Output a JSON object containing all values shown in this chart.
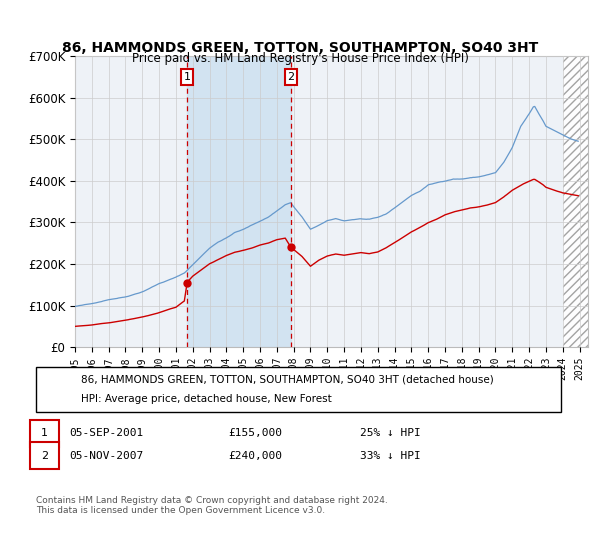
{
  "title": "86, HAMMONDS GREEN, TOTTON, SOUTHAMPTON, SO40 3HT",
  "subtitle": "Price paid vs. HM Land Registry's House Price Index (HPI)",
  "ylim": [
    0,
    700000
  ],
  "yticks": [
    0,
    100000,
    200000,
    300000,
    400000,
    500000,
    600000,
    700000
  ],
  "ytick_labels": [
    "£0",
    "£100K",
    "£200K",
    "£300K",
    "£400K",
    "£500K",
    "£600K",
    "£700K"
  ],
  "xlim_start": 1995.0,
  "xlim_end": 2025.5,
  "sale1_date": 2001.67,
  "sale1_price": 155000,
  "sale2_date": 2007.84,
  "sale2_price": 240000,
  "hatch_start": 2024.0,
  "red_line_color": "#cc0000",
  "blue_line_color": "#6699cc",
  "dashed_line_color": "#cc0000",
  "marker_box_color": "#cc0000",
  "background_color": "#ffffff",
  "plot_bg_color": "#eef2f7",
  "grid_color": "#cccccc",
  "legend_line1": "86, HAMMONDS GREEN, TOTTON, SOUTHAMPTON, SO40 3HT (detached house)",
  "legend_line2": "HPI: Average price, detached house, New Forest",
  "footnote": "Contains HM Land Registry data © Crown copyright and database right 2024.\nThis data is licensed under the Open Government Licence v3.0."
}
